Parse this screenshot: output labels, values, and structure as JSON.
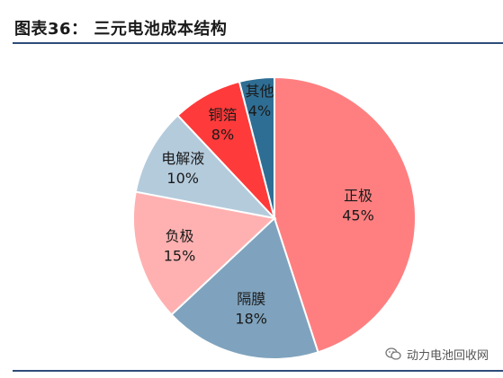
{
  "header": {
    "title": "图表36：  三元电池成本结构"
  },
  "watermark": {
    "text": "动力电池回收网",
    "icon": "wechat-icon"
  },
  "colors": {
    "rule": "#2e4c7a"
  },
  "chart_data": {
    "type": "pie",
    "title": "三元电池成本结构",
    "unit": "%",
    "start_angle_deg": 0,
    "direction": "clockwise",
    "slices": [
      {
        "name": "正极",
        "value": 45,
        "label": "45%",
        "color": "#ff7f80"
      },
      {
        "name": "隔膜",
        "value": 18,
        "label": "18%",
        "color": "#7fa3be"
      },
      {
        "name": "负极",
        "value": 15,
        "label": "15%",
        "color": "#ffb1b1"
      },
      {
        "name": "电解液",
        "value": 10,
        "label": "10%",
        "color": "#b4cbdc"
      },
      {
        "name": "铜箔",
        "value": 8,
        "label": "8%",
        "color": "#ff3a3a"
      },
      {
        "name": "其他",
        "value": 4,
        "label": "4%",
        "color": "#2f6e94"
      }
    ]
  }
}
